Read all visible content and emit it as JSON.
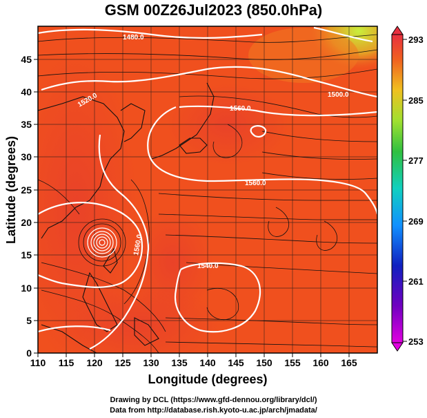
{
  "title": "GSM 00Z26Jul2023 (850.0hPa)",
  "axes": {
    "xlabel": "Longitude (degrees)",
    "ylabel": "Latitude  (degrees)",
    "xticks": [
      "110",
      "115",
      "120",
      "125",
      "130",
      "135",
      "140",
      "145",
      "150",
      "155",
      "160",
      "165"
    ],
    "yticks": [
      "0",
      "5",
      "10",
      "15",
      "20",
      "25",
      "30",
      "35",
      "40",
      "45"
    ],
    "xlim": [
      110,
      170
    ],
    "ylim": [
      0,
      50
    ]
  },
  "colorbar": {
    "ticks": [
      "293",
      "285",
      "277",
      "269",
      "261",
      "253"
    ],
    "min": 253,
    "max": 293
  },
  "contours": [
    {
      "label": "1480.0"
    },
    {
      "label": "1500.0"
    },
    {
      "label": "1520.0"
    },
    {
      "label": "1540.0"
    },
    {
      "label": "1560.0"
    },
    {
      "label": "1560.0"
    },
    {
      "label": "1560.0"
    }
  ],
  "footer": {
    "line1": "Drawing by DCL (https://www.gfd-dennou.org/library/dcl/)",
    "line2": "Data from http://database.rish.kyoto-u.ac.jp/arch/jmadata/"
  },
  "colors": {
    "field_main": "#f0501e",
    "field_warm": "#e63c22",
    "field_yellow": "#c8e63c",
    "contour": "#ffffff"
  }
}
